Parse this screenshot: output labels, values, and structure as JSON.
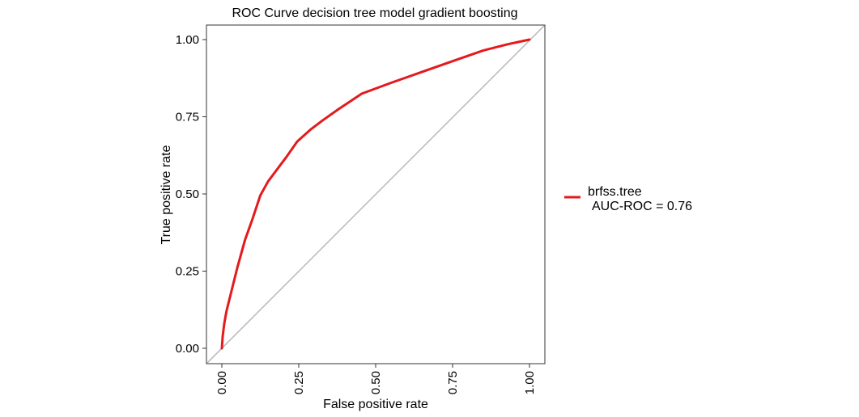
{
  "chart_data": {
    "type": "line",
    "title": "ROC Curve decision tree model gradient boosting",
    "xlabel": "False positive rate",
    "ylabel": "True positive rate",
    "xlim": [
      0,
      1
    ],
    "ylim": [
      0,
      1
    ],
    "x_ticks": [
      "0.00",
      "0.25",
      "0.50",
      "0.75",
      "1.00"
    ],
    "y_ticks": [
      "0.00",
      "0.25",
      "0.50",
      "0.75",
      "1.00"
    ],
    "grid": false,
    "legend_position": "right",
    "series": [
      {
        "name": "brfss.tree",
        "label_line2": "AUC-ROC = 0.76",
        "color": "#e41a1c",
        "x": [
          0.0,
          0.003,
          0.008,
          0.015,
          0.03,
          0.05,
          0.075,
          0.1,
          0.125,
          0.15,
          0.18,
          0.21,
          0.245,
          0.29,
          0.33,
          0.38,
          0.455,
          0.55,
          0.65,
          0.75,
          0.85,
          0.93,
          1.0
        ],
        "y": [
          0.0,
          0.04,
          0.08,
          0.12,
          0.18,
          0.26,
          0.35,
          0.42,
          0.495,
          0.54,
          0.58,
          0.62,
          0.67,
          0.71,
          0.74,
          0.775,
          0.825,
          0.86,
          0.895,
          0.93,
          0.965,
          0.985,
          1.0
        ]
      },
      {
        "name": "",
        "role": "reference-diagonal",
        "color": "#bdbdbd",
        "x": [
          0,
          1
        ],
        "y": [
          0,
          1
        ]
      }
    ]
  }
}
